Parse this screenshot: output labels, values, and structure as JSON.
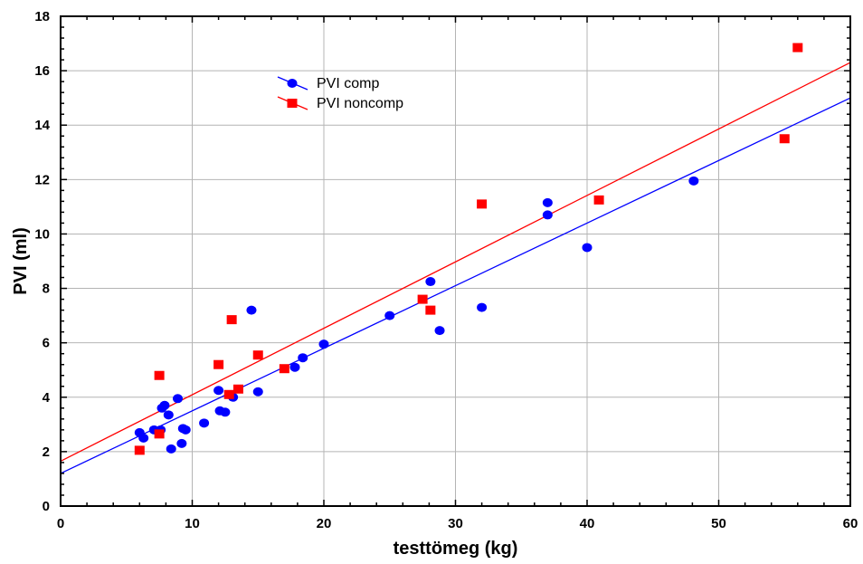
{
  "chart_data": {
    "type": "scatter",
    "title": "",
    "xlabel": "testtömeg (kg)",
    "ylabel": "PVI (ml)",
    "xlim": [
      0,
      60
    ],
    "ylim": [
      0,
      18
    ],
    "xticks": [
      0,
      10,
      20,
      30,
      40,
      50,
      60
    ],
    "yticks": [
      0,
      2,
      4,
      6,
      8,
      10,
      12,
      14,
      16,
      18
    ],
    "grid": true,
    "legend_position": "top-left",
    "series": [
      {
        "name": "PVI comp",
        "marker": "circle",
        "color": "#0000ff",
        "points": [
          [
            6.0,
            2.7
          ],
          [
            6.3,
            2.5
          ],
          [
            7.1,
            2.8
          ],
          [
            7.6,
            2.8
          ],
          [
            7.7,
            3.6
          ],
          [
            7.9,
            3.7
          ],
          [
            8.2,
            3.35
          ],
          [
            8.4,
            2.1
          ],
          [
            8.9,
            3.95
          ],
          [
            9.2,
            2.3
          ],
          [
            9.3,
            2.85
          ],
          [
            9.5,
            2.8
          ],
          [
            10.9,
            3.05
          ],
          [
            12.0,
            4.25
          ],
          [
            12.1,
            3.5
          ],
          [
            12.5,
            3.45
          ],
          [
            13.1,
            4.0
          ],
          [
            14.5,
            7.2
          ],
          [
            15.0,
            4.2
          ],
          [
            17.8,
            5.1
          ],
          [
            18.4,
            5.45
          ],
          [
            20.0,
            5.95
          ],
          [
            25.0,
            7.0
          ],
          [
            28.1,
            8.25
          ],
          [
            28.8,
            6.45
          ],
          [
            32.0,
            7.3
          ],
          [
            37.0,
            11.15
          ],
          [
            37.0,
            10.7
          ],
          [
            40.0,
            9.5
          ],
          [
            48.1,
            11.95
          ]
        ],
        "fit": {
          "x": [
            0,
            60
          ],
          "y": [
            1.2,
            15.0
          ]
        }
      },
      {
        "name": "PVI noncomp",
        "marker": "square",
        "color": "#ff0000",
        "points": [
          [
            6.0,
            2.05
          ],
          [
            7.5,
            4.8
          ],
          [
            7.5,
            2.65
          ],
          [
            12.0,
            5.2
          ],
          [
            12.8,
            4.1
          ],
          [
            13.0,
            6.85
          ],
          [
            13.5,
            4.3
          ],
          [
            15.0,
            5.55
          ],
          [
            17.0,
            5.05
          ],
          [
            27.5,
            7.6
          ],
          [
            28.1,
            7.2
          ],
          [
            32.0,
            11.1
          ],
          [
            40.9,
            11.25
          ],
          [
            55.0,
            13.5
          ],
          [
            56.0,
            16.85
          ]
        ],
        "fit": {
          "x": [
            0,
            60
          ],
          "y": [
            1.65,
            16.3
          ]
        }
      }
    ]
  }
}
